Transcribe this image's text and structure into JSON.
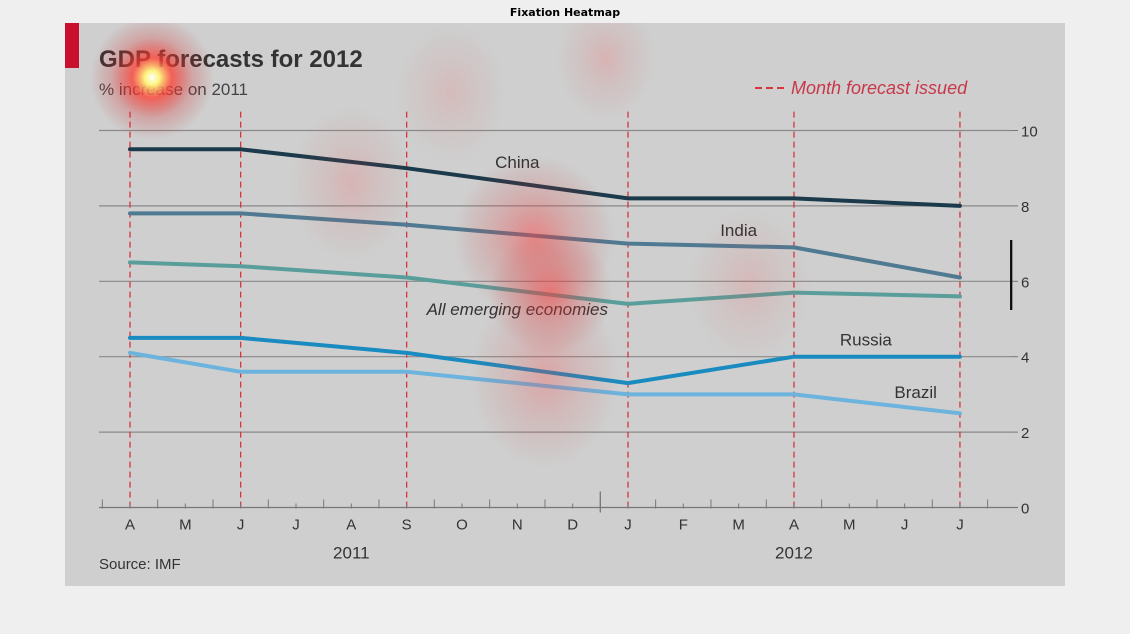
{
  "figure_title": "Fixation Heatmap",
  "colors": {
    "background": "#efefef",
    "panel": "#cfcfcf",
    "accent": "#c8102e",
    "forecast_line": "#d6343f",
    "axis": "#777777"
  },
  "chart_data": {
    "type": "line",
    "title": "GDP forecasts for 2012",
    "subtitle": "% increase on 2011",
    "legend_text": "Month forecast issued",
    "source": "Source: IMF",
    "x_tick_labels": [
      "A",
      "M",
      "J",
      "J",
      "A",
      "S",
      "O",
      "N",
      "D",
      "J",
      "F",
      "M",
      "A",
      "M",
      "J",
      "J"
    ],
    "year_labels": [
      {
        "label": "2011",
        "center_index": 4
      },
      {
        "label": "2012",
        "center_index": 12
      }
    ],
    "forecast_month_indices": [
      0,
      2,
      5,
      9,
      12,
      15
    ],
    "y_ticks": [
      0,
      2,
      4,
      6,
      8,
      10
    ],
    "ylim": [
      0,
      10
    ],
    "grid": true,
    "series": [
      {
        "name": "China",
        "color": "#1b3a4b",
        "x_index": [
          0,
          2,
          5,
          9,
          12,
          15
        ],
        "values": [
          9.5,
          9.5,
          9.0,
          8.2,
          8.2,
          8.0
        ],
        "label_index": 7,
        "label_value": 9.0,
        "italic": false
      },
      {
        "name": "India",
        "color": "#4f7a92",
        "x_index": [
          0,
          2,
          5,
          9,
          12,
          15
        ],
        "values": [
          7.8,
          7.8,
          7.5,
          7.0,
          6.9,
          6.1
        ],
        "label_index": 11,
        "label_value": 7.2,
        "italic": false
      },
      {
        "name": "All emerging economies",
        "color": "#5a9e9b",
        "x_index": [
          0,
          2,
          5,
          9,
          12,
          15
        ],
        "values": [
          6.5,
          6.4,
          6.1,
          5.4,
          5.7,
          5.6
        ],
        "label_index": 7,
        "label_value": 5.1,
        "italic": true
      },
      {
        "name": "Russia",
        "color": "#1a8bc0",
        "x_index": [
          0,
          2,
          5,
          9,
          12,
          15
        ],
        "values": [
          4.5,
          4.5,
          4.1,
          3.3,
          4.0,
          4.0
        ],
        "label_index": 13.3,
        "label_value": 4.3,
        "italic": false
      },
      {
        "name": "Brazil",
        "color": "#6cb3dd",
        "x_index": [
          0,
          2,
          5,
          9,
          12,
          15
        ],
        "values": [
          4.1,
          3.6,
          3.6,
          3.0,
          3.0,
          2.5
        ],
        "label_index": 14.2,
        "label_value": 2.9,
        "italic": false
      }
    ]
  },
  "heatmap_fixations": [
    {
      "x_index": 0.4,
      "value": 11.4,
      "intensity": 1.0,
      "spread": 1.0
    },
    {
      "x_index": 7.3,
      "value": 7.2,
      "intensity": 0.55,
      "spread": 1.3
    },
    {
      "x_index": 7.6,
      "value": 5.7,
      "intensity": 0.6,
      "spread": 1.0
    },
    {
      "x_index": 7.5,
      "value": 3.5,
      "intensity": 0.3,
      "spread": 1.2
    },
    {
      "x_index": 4.0,
      "value": 8.6,
      "intensity": 0.18,
      "spread": 1.0
    },
    {
      "x_index": 8.6,
      "value": 11.9,
      "intensity": 0.18,
      "spread": 0.8
    },
    {
      "x_index": 11.2,
      "value": 5.9,
      "intensity": 0.14,
      "spread": 1.0
    },
    {
      "x_index": 5.8,
      "value": 11.0,
      "intensity": 0.12,
      "spread": 0.9
    }
  ]
}
